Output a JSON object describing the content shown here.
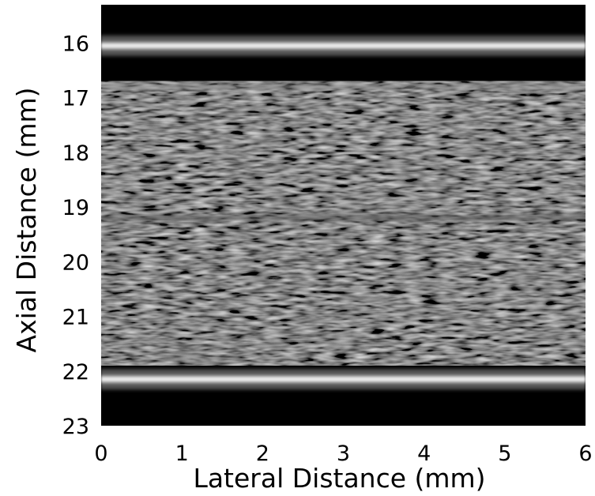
{
  "figure": {
    "xlabel": "Lateral Distance (mm)",
    "ylabel": "Axial Distance (mm)",
    "xlim": [
      0,
      6
    ],
    "ylim": [
      15.3,
      23
    ],
    "x_ticks": [
      "0",
      "1",
      "2",
      "3",
      "4",
      "5",
      "6"
    ],
    "y_ticks": [
      "16",
      "17",
      "18",
      "19",
      "20",
      "21",
      "22",
      "23"
    ],
    "colormap": "grayscale",
    "bright_bands_mm": [
      {
        "label": "upper-wall",
        "depth": 16.05,
        "intensity": 0.95
      },
      {
        "label": "upper-wall-echo",
        "depth": 16.8,
        "intensity": 0.55
      },
      {
        "label": "faint-reflector",
        "depth": 19.2,
        "intensity": 0.35
      },
      {
        "label": "lower-wall",
        "depth": 22.15,
        "intensity": 0.95
      }
    ],
    "speckle_region_mm": [
      16.7,
      21.9
    ],
    "background_color": "#000000"
  }
}
